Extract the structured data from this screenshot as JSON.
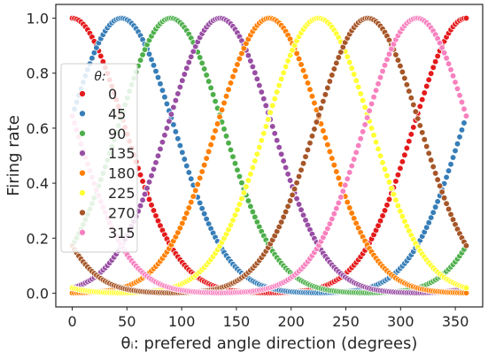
{
  "chart_data": {
    "type": "scatter",
    "xlabel": "θᵢ: prefered angle direction (degrees)",
    "ylabel": "Firing rate",
    "xlim": [
      -15,
      375
    ],
    "ylim": [
      -0.05,
      1.05
    ],
    "xticks": [
      0,
      50,
      100,
      150,
      200,
      250,
      300,
      350
    ],
    "yticks": [
      0.0,
      0.2,
      0.4,
      0.6,
      0.8,
      1.0
    ],
    "x_tick_labels": [
      "0",
      "50",
      "100",
      "150",
      "200",
      "250",
      "300",
      "350"
    ],
    "y_tick_labels": [
      "0.0",
      "0.2",
      "0.4",
      "0.6",
      "0.8",
      "1.0"
    ],
    "grid": false,
    "legend": {
      "title": "θ:",
      "placement": "center-left"
    },
    "tuning": {
      "x_range": [
        0,
        360
      ],
      "points_per_series": 180,
      "peak_rate": 1.0,
      "baseline_rate": 0.0,
      "tuning_width_deg": 48
    },
    "series": [
      {
        "name": "0",
        "peak": 0,
        "color": "#e41a1c"
      },
      {
        "name": "45",
        "peak": 45,
        "color": "#377eb8"
      },
      {
        "name": "90",
        "peak": 90,
        "color": "#4daf4a"
      },
      {
        "name": "135",
        "peak": 135,
        "color": "#984ea3"
      },
      {
        "name": "180",
        "peak": 180,
        "color": "#ff7f00"
      },
      {
        "name": "225",
        "peak": 225,
        "color": "#ffff33"
      },
      {
        "name": "270",
        "peak": 270,
        "color": "#a65628"
      },
      {
        "name": "315",
        "peak": 315,
        "color": "#f781bf"
      }
    ]
  }
}
